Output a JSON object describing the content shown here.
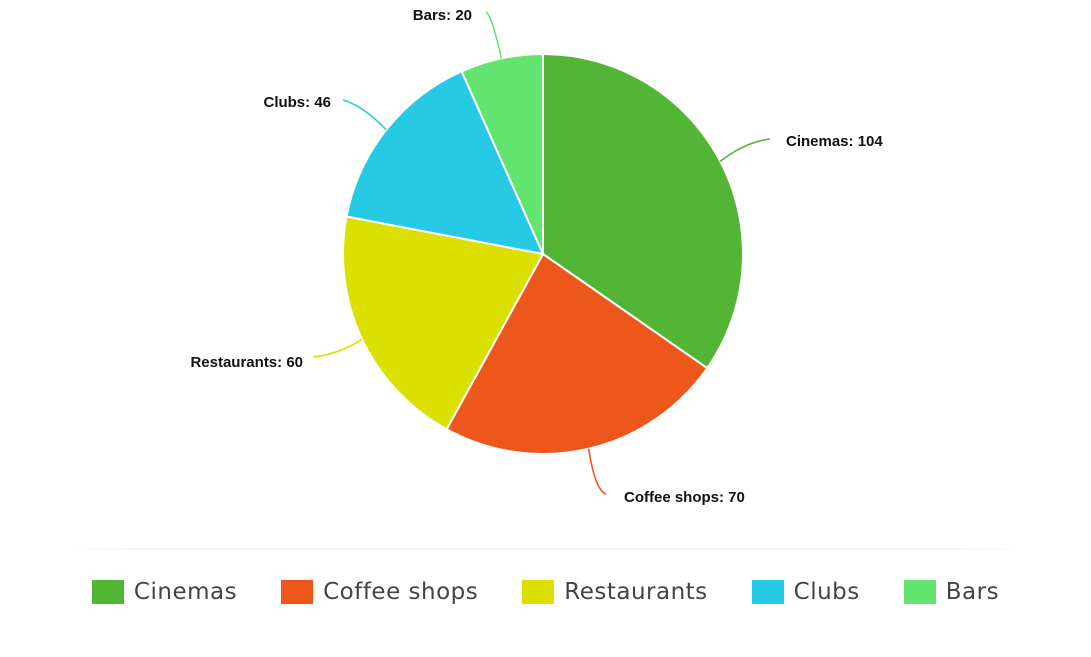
{
  "chart_data": {
    "type": "pie",
    "title": "",
    "categories": [
      "Cinemas",
      "Coffee shops",
      "Restaurants",
      "Clubs",
      "Bars"
    ],
    "values": [
      104,
      70,
      60,
      46,
      20
    ],
    "colors": [
      "#52b536",
      "#ee571c",
      "#dce000",
      "#26cae5",
      "#63e46f"
    ],
    "data_labels": [
      "Cinemas: 104",
      "Coffee shops: 70",
      "Restaurants: 60",
      "Clubs: 46",
      "Bars: 20"
    ],
    "legend_position": "bottom",
    "start_angle": "12 o'clock, clockwise"
  },
  "legend": {
    "items": [
      {
        "label": "Cinemas",
        "color": "#52b536"
      },
      {
        "label": "Coffee shops",
        "color": "#ee571c"
      },
      {
        "label": "Restaurants",
        "color": "#dce000"
      },
      {
        "label": "Clubs",
        "color": "#26cae5"
      },
      {
        "label": "Bars",
        "color": "#63e46f"
      }
    ]
  }
}
